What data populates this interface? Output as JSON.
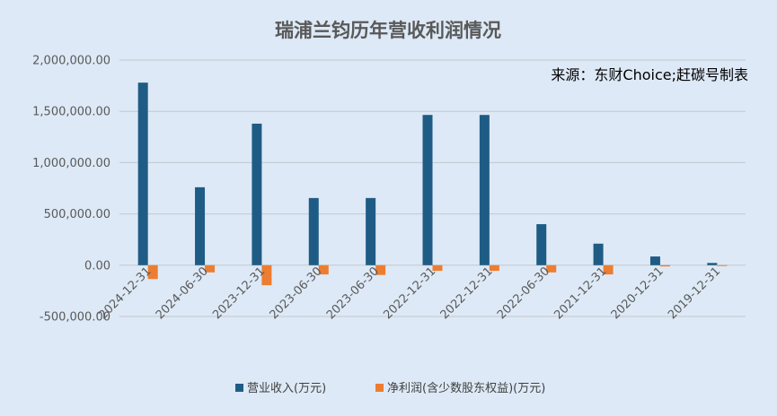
{
  "chart_data": {
    "type": "bar",
    "title": "瑞浦兰钧历年营收利润情况",
    "annotation": "来源：东财Choice;赶碳号制表",
    "categories": [
      "2024-12-31",
      "2024-06-30",
      "2023-12-31",
      "2023-06-30",
      "2023-06-30",
      "2022-12-31",
      "2022-12-31",
      "2022-06-30",
      "2021-12-31",
      "2020-12-31",
      "2019-12-31"
    ],
    "series": [
      {
        "name": "营业收入(万元)",
        "color": "#1f5c85",
        "values": [
          1780000,
          760000,
          1380000,
          655000,
          655000,
          1465000,
          1465000,
          400000,
          210000,
          85000,
          22000
        ]
      },
      {
        "name": "净利润(含少数股东权益)(万元)",
        "color": "#ed7d31",
        "values": [
          -135000,
          -70000,
          -195000,
          -90000,
          -95000,
          -55000,
          -55000,
          -70000,
          -90000,
          -12000,
          -8000
        ]
      }
    ],
    "ylim": [
      -500000,
      2000000
    ],
    "yticks": [
      2000000,
      1500000,
      1000000,
      500000,
      0,
      -500000
    ],
    "ytick_labels": [
      "2,000,000.00",
      "1,500,000.00",
      "1,000,000.00",
      "500,000.00",
      "0.00",
      "-500,000.00"
    ],
    "grid": true,
    "legend_position": "bottom"
  }
}
